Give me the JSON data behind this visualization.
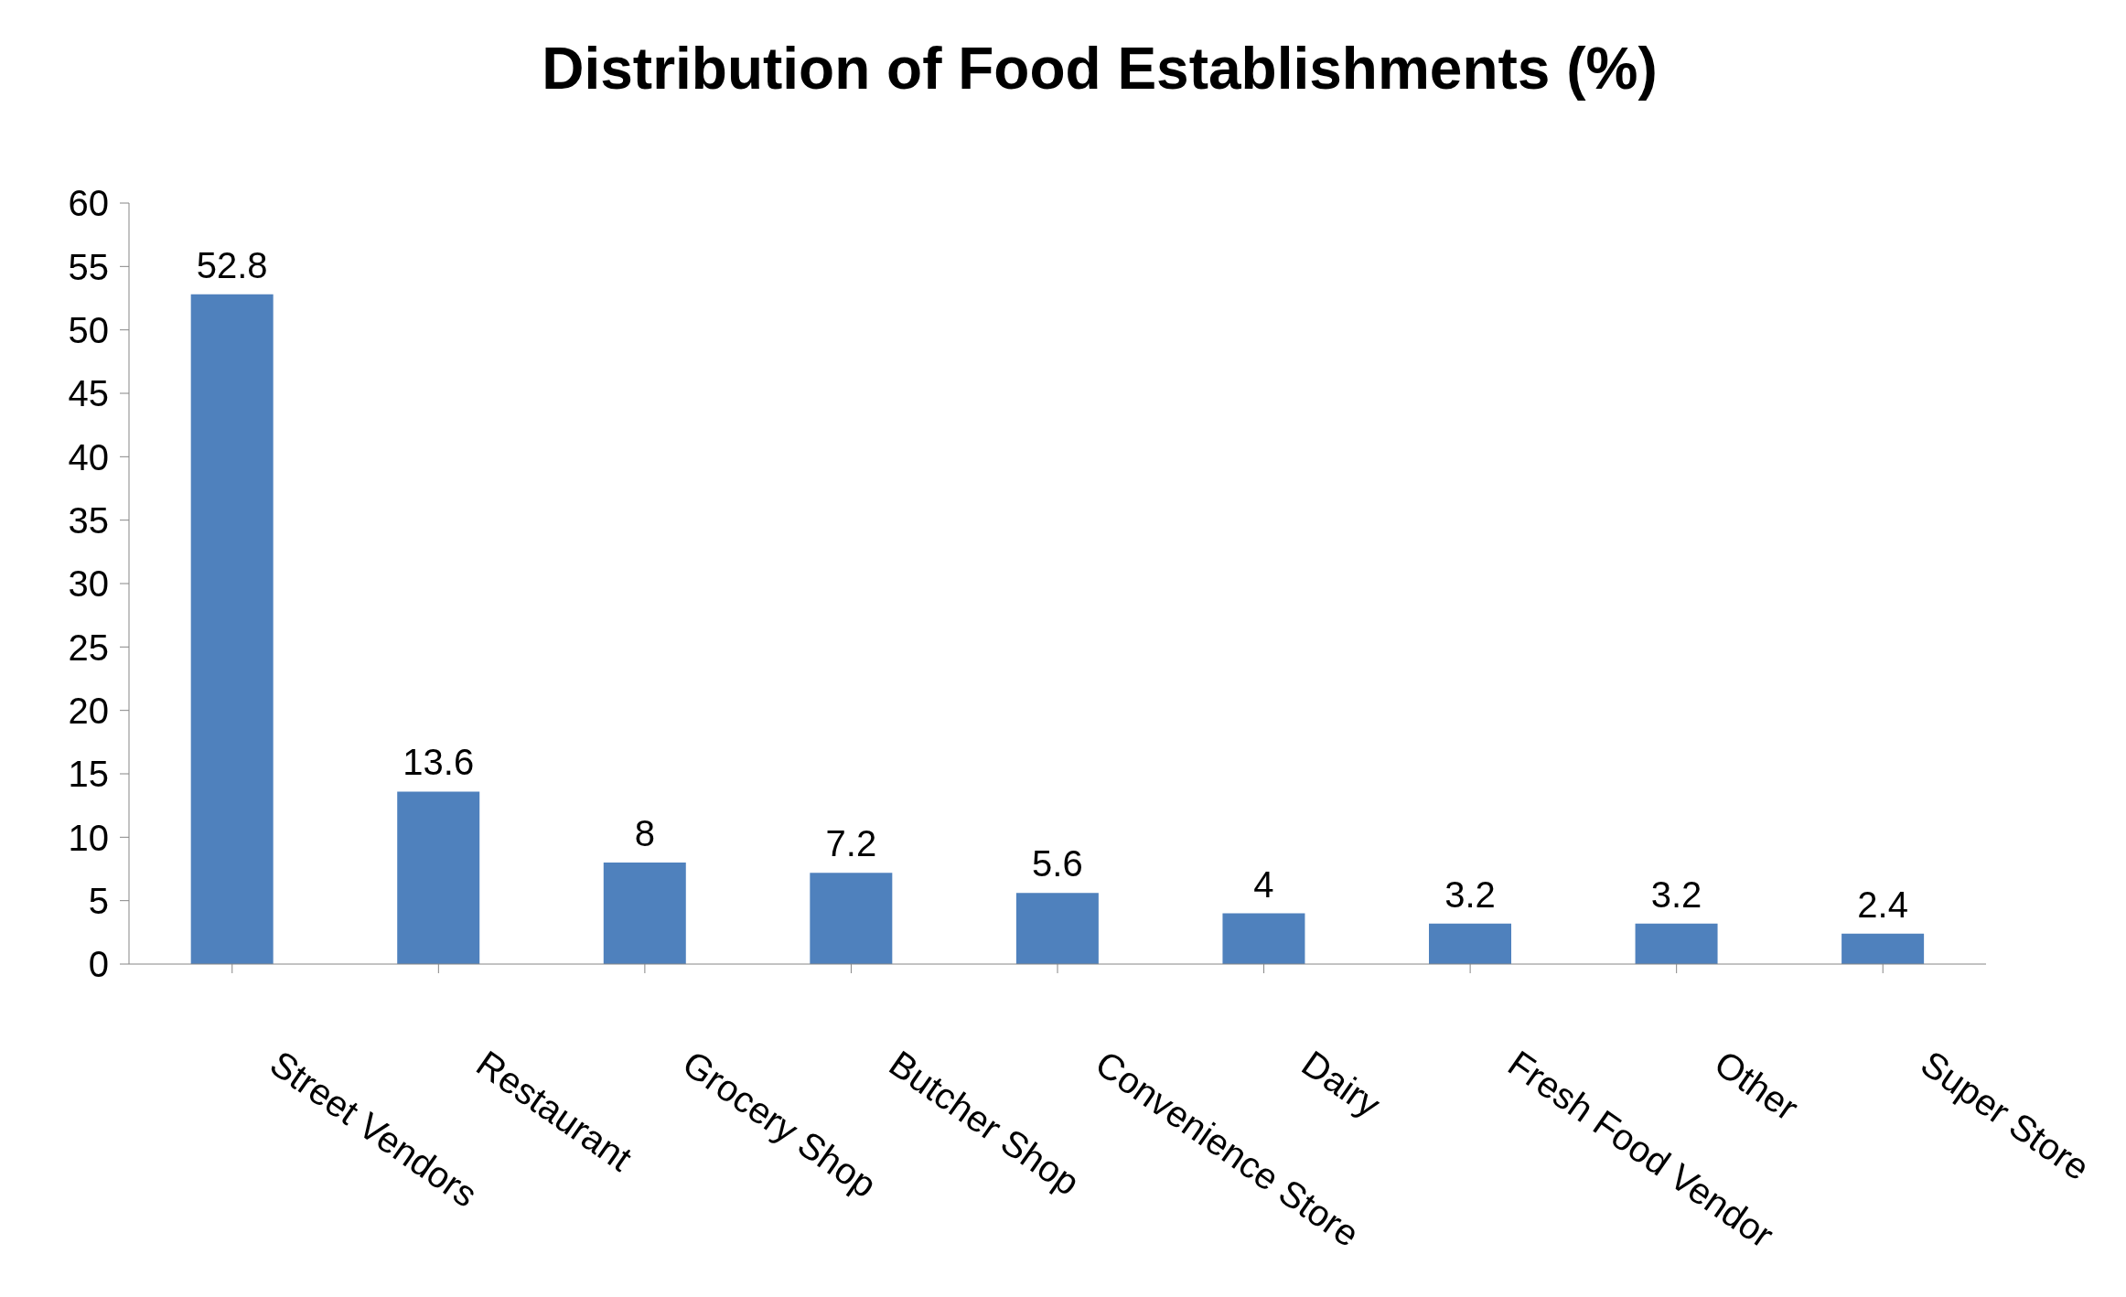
{
  "chart_data": {
    "type": "bar",
    "title": "Distribution of Food Establishments (%)",
    "categories": [
      "Street Vendors",
      "Restaurant",
      "Grocery Shop",
      "Butcher Shop",
      "Convenience Store",
      "Dairy",
      "Fresh Food Vendor",
      "Other",
      "Super Store"
    ],
    "values": [
      52.8,
      13.6,
      8,
      7.2,
      5.6,
      4,
      3.2,
      3.2,
      2.4
    ],
    "color": "#4f81bd",
    "ylim": [
      0,
      60
    ],
    "yticks": [
      0,
      5,
      10,
      15,
      20,
      25,
      30,
      35,
      40,
      45,
      50,
      55,
      60
    ],
    "data_labels": true,
    "grid": false,
    "legend": false
  }
}
